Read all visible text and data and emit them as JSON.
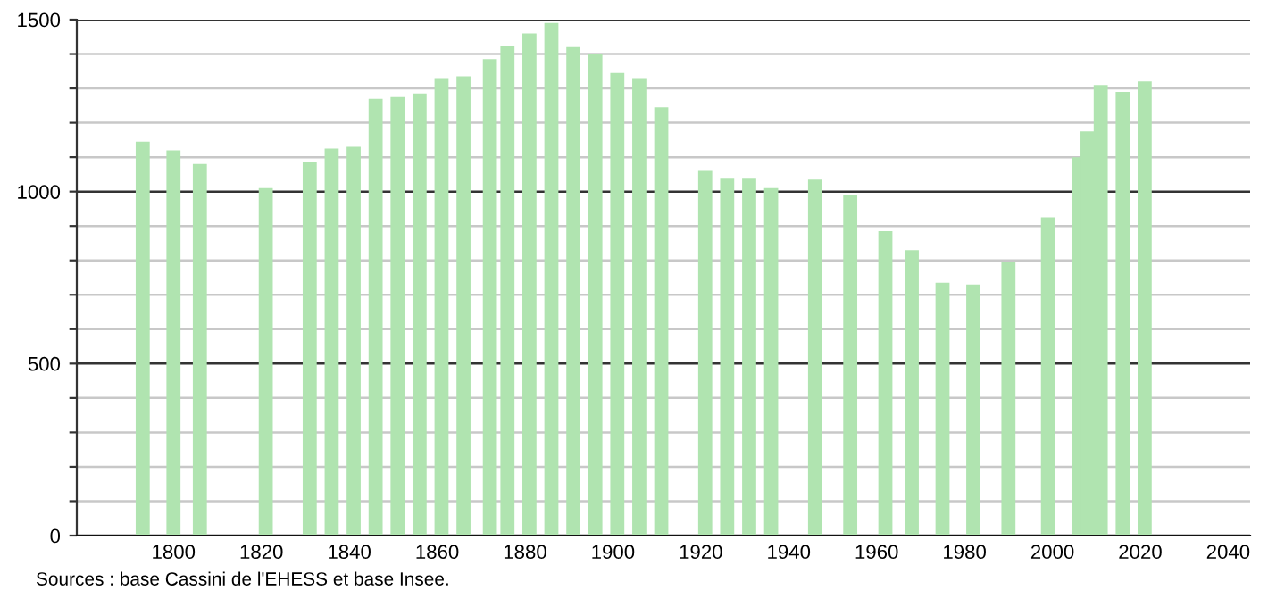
{
  "chart_data": {
    "type": "bar",
    "x": [
      1793,
      1800,
      1806,
      1821,
      1831,
      1836,
      1841,
      1846,
      1851,
      1856,
      1861,
      1866,
      1872,
      1876,
      1881,
      1886,
      1891,
      1896,
      1901,
      1906,
      1911,
      1921,
      1926,
      1931,
      1936,
      1946,
      1954,
      1962,
      1968,
      1975,
      1982,
      1990,
      1999,
      2006,
      2008,
      2011,
      2016,
      2021
    ],
    "values": [
      1145,
      1120,
      1080,
      1010,
      1085,
      1125,
      1130,
      1270,
      1275,
      1285,
      1330,
      1335,
      1385,
      1425,
      1460,
      1490,
      1420,
      1400,
      1345,
      1330,
      1245,
      1060,
      1040,
      1040,
      1010,
      1035,
      990,
      885,
      830,
      735,
      730,
      795,
      925,
      1100,
      1175,
      1310,
      1290,
      1320
    ],
    "color": "#b0e4b0",
    "xlim": [
      1778,
      2045
    ],
    "xticks": [
      1800,
      1820,
      1840,
      1860,
      1880,
      1900,
      1920,
      1940,
      1960,
      1980,
      2000,
      2020,
      2040
    ],
    "ylim": [
      0,
      1500
    ],
    "yticks": [
      0,
      {
        "value": 100,
        "label": null
      },
      {
        "value": 200,
        "label": null
      },
      {
        "value": 300,
        "label": null
      },
      {
        "value": 400,
        "label": null
      },
      500,
      {
        "value": 600,
        "label": null
      },
      {
        "value": 700,
        "label": null
      },
      {
        "value": 800,
        "label": null
      },
      {
        "value": 900,
        "label": null
      },
      1000,
      {
        "value": 1100,
        "label": null
      },
      {
        "value": 1200,
        "label": null
      },
      {
        "value": 1300,
        "label": null
      },
      {
        "value": 1400,
        "label": null
      },
      1500
    ],
    "grid": "y",
    "annotations": [
      "Sources : base Cassini de l'EHESS et base Insee."
    ]
  }
}
